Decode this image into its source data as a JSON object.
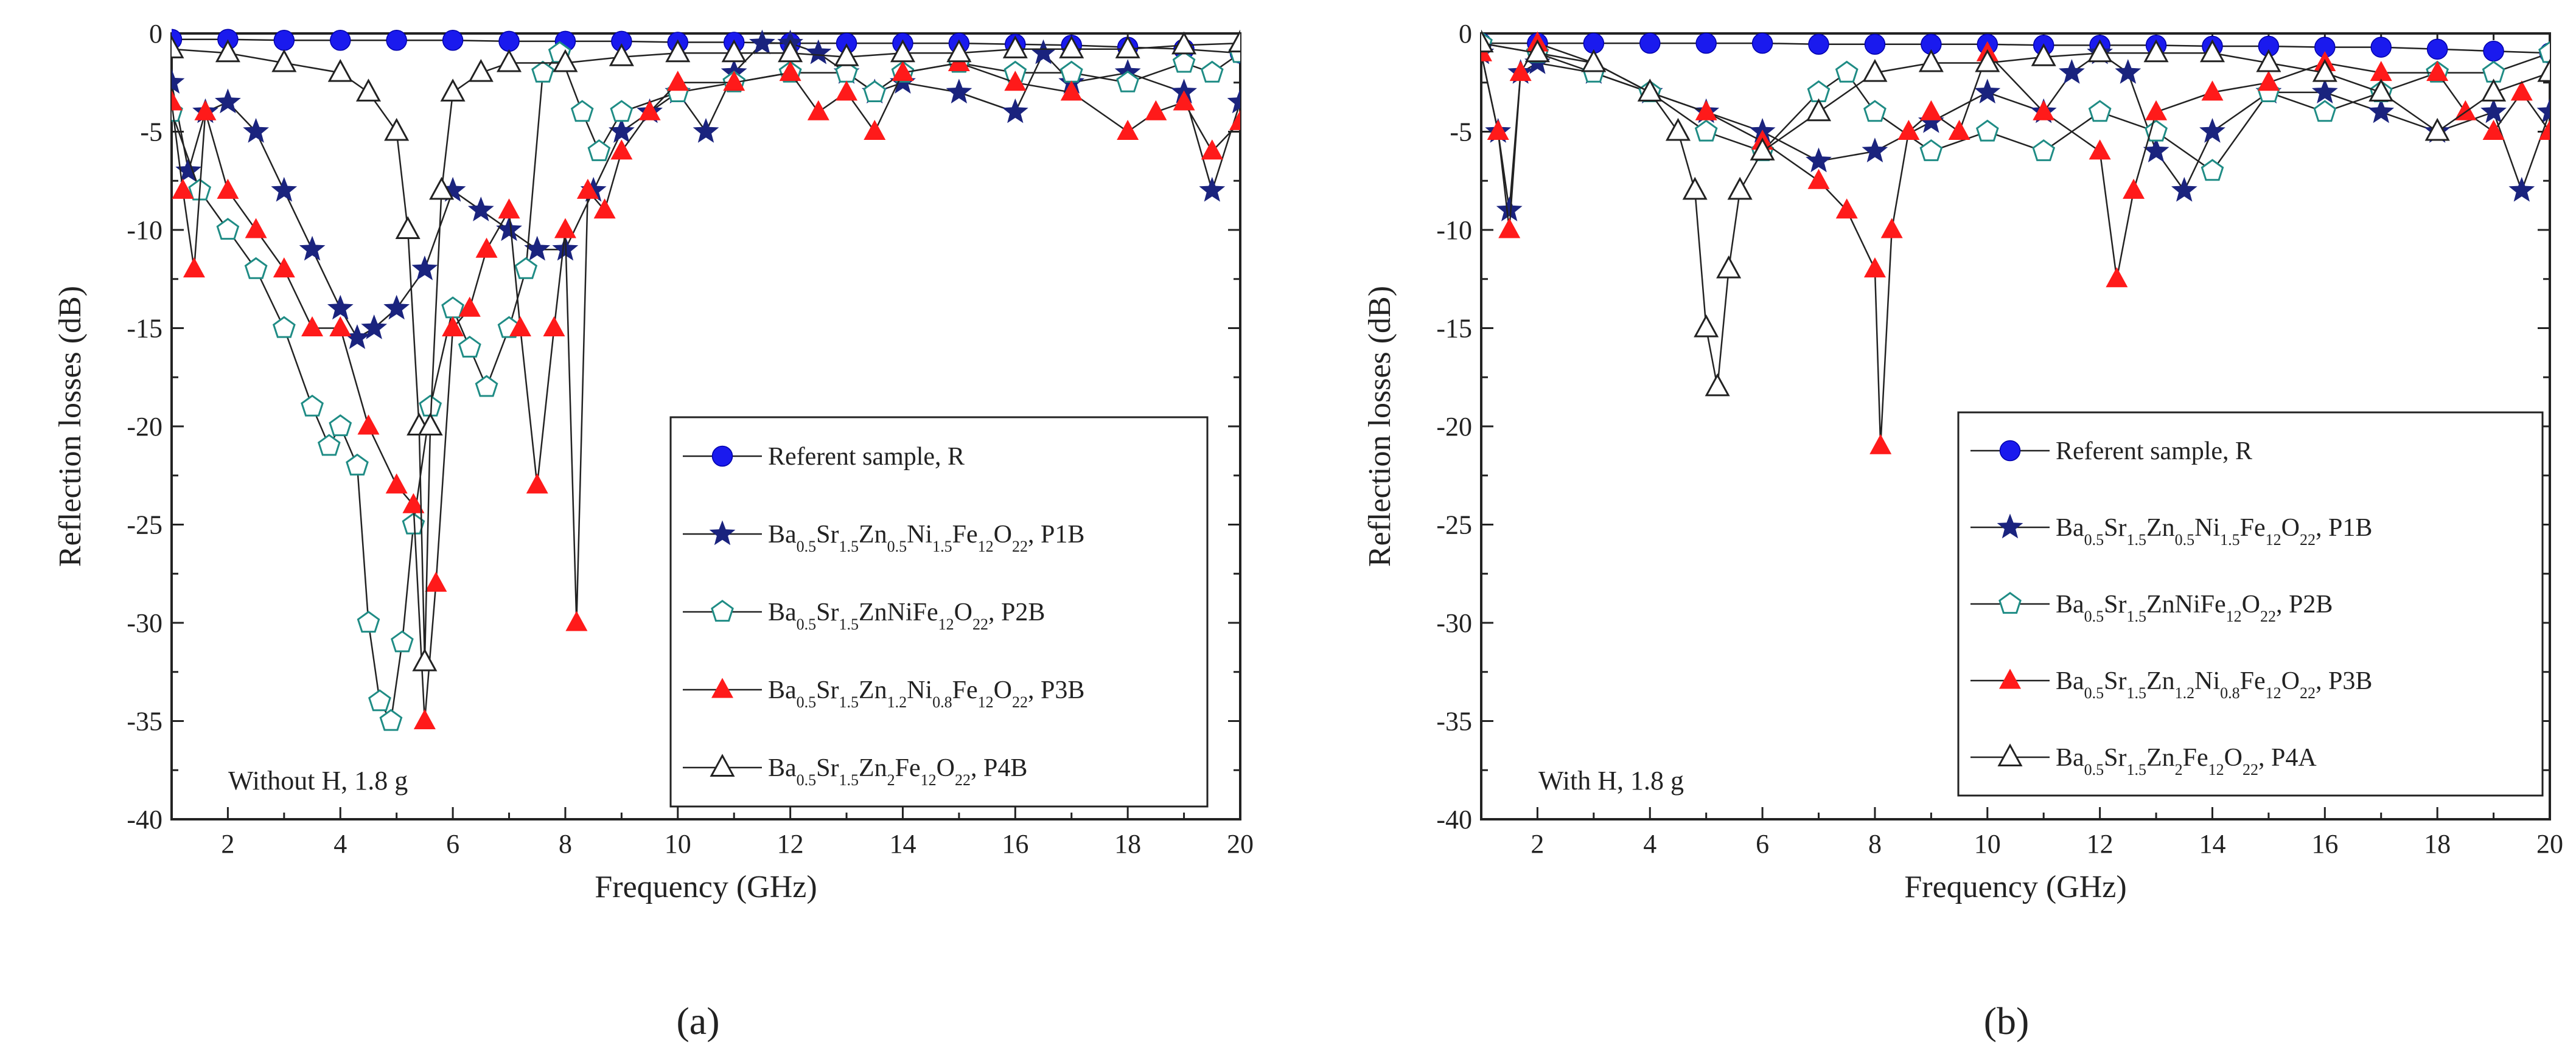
{
  "chart_data": [
    {
      "type": "line",
      "panel_label": "(a)",
      "xlabel": "Frequency (GHz)",
      "ylabel": "Reflection losses (dB)",
      "xlim": [
        1,
        20
      ],
      "ylim": [
        -40,
        0
      ],
      "xticks": [
        2,
        4,
        6,
        8,
        10,
        12,
        14,
        16,
        18,
        20
      ],
      "yticks": [
        0,
        -5,
        -10,
        -15,
        -20,
        -25,
        -30,
        -35,
        -40
      ],
      "annotation": "Without H, 1.8 g",
      "legend_position": "bottom-right",
      "series": [
        {
          "name": "Referent sample, R",
          "color": "#1a1aee",
          "marker": "circle",
          "x": [
            1,
            2,
            3,
            4,
            5,
            6,
            7,
            8,
            9,
            10,
            11,
            12,
            13,
            14,
            15,
            16,
            17,
            18,
            19,
            20
          ],
          "y": [
            -0.3,
            -0.3,
            -0.35,
            -0.35,
            -0.35,
            -0.35,
            -0.4,
            -0.4,
            -0.4,
            -0.45,
            -0.45,
            -0.5,
            -0.5,
            -0.5,
            -0.5,
            -0.55,
            -0.6,
            -0.7,
            -0.8,
            -1.0
          ]
        },
        {
          "name": "Ba0.5Sr1.5Zn0.5Ni1.5Fe12O22, P1B",
          "color": "#1a237e",
          "marker": "star",
          "legend_parts": [
            [
              "Ba",
              ""
            ],
            [
              "0.5",
              "sub"
            ],
            [
              "Sr",
              ""
            ],
            [
              "1.5",
              "sub"
            ],
            [
              "Zn",
              ""
            ],
            [
              "0.5",
              "sub"
            ],
            [
              "Ni",
              ""
            ],
            [
              "1.5",
              "sub"
            ],
            [
              "Fe",
              ""
            ],
            [
              "12",
              "sub"
            ],
            [
              "O",
              ""
            ],
            [
              "22",
              "sub"
            ],
            [
              ", P1B",
              ""
            ]
          ],
          "x": [
            1,
            1.3,
            1.6,
            2,
            2.5,
            3,
            3.5,
            4,
            4.3,
            4.6,
            5,
            5.5,
            6,
            6.5,
            7,
            7.5,
            8,
            8.5,
            9,
            9.5,
            10,
            10.5,
            11,
            11.5,
            12,
            12.5,
            13,
            13.5,
            14,
            15,
            16,
            16.5,
            17,
            18,
            19,
            19.5,
            20
          ],
          "y": [
            -2.5,
            -7,
            -4,
            -3.5,
            -5,
            -8,
            -11,
            -14,
            -15.5,
            -15,
            -14,
            -12,
            -8,
            -9,
            -10,
            -11,
            -11,
            -8,
            -5,
            -4,
            -3,
            -5,
            -2,
            -0.5,
            -0.5,
            -1,
            -2,
            -3,
            -2.5,
            -3,
            -4,
            -1,
            -2.5,
            -2,
            -3,
            -8,
            -3.5
          ]
        },
        {
          "name": "Ba0.5Sr1.5ZnNiFe12O22, P2B",
          "color": "#1f8c85",
          "marker": "pentagon",
          "legend_parts": [
            [
              "Ba",
              ""
            ],
            [
              "0.5",
              "sub"
            ],
            [
              "Sr",
              ""
            ],
            [
              "1.5",
              "sub"
            ],
            [
              "ZnNiFe",
              ""
            ],
            [
              "12",
              "sub"
            ],
            [
              "O",
              ""
            ],
            [
              "22",
              "sub"
            ],
            [
              ", P2B",
              ""
            ]
          ],
          "x": [
            1,
            1.5,
            2,
            2.5,
            3,
            3.5,
            3.8,
            4,
            4.3,
            4.5,
            4.7,
            4.9,
            5.1,
            5.3,
            5.6,
            6,
            6.3,
            6.6,
            7,
            7.3,
            7.6,
            7.9,
            8.3,
            8.6,
            9,
            10,
            11,
            12,
            13,
            13.5,
            14,
            15,
            16,
            17,
            18,
            19,
            19.5,
            20
          ],
          "y": [
            -4,
            -8,
            -10,
            -12,
            -15,
            -19,
            -21,
            -20,
            -22,
            -30,
            -34,
            -35,
            -31,
            -25,
            -19,
            -14,
            -16,
            -18,
            -15,
            -12,
            -2,
            -1,
            -4,
            -6,
            -4,
            -3,
            -2.5,
            -2,
            -2,
            -3,
            -2,
            -1.5,
            -2,
            -2,
            -2.5,
            -1.5,
            -2,
            -1
          ]
        },
        {
          "name": "Ba0.5Sr1.5Zn1.2Ni0.8Fe12O22, P3B",
          "color": "#ff1a1a",
          "marker": "triangle",
          "legend_parts": [
            [
              "Ba",
              ""
            ],
            [
              "0.5",
              "sub"
            ],
            [
              "Sr",
              ""
            ],
            [
              "1.5",
              "sub"
            ],
            [
              "Zn",
              ""
            ],
            [
              "1.2",
              "sub"
            ],
            [
              "Ni",
              ""
            ],
            [
              "0.8",
              "sub"
            ],
            [
              "Fe",
              ""
            ],
            [
              "12",
              "sub"
            ],
            [
              "O",
              ""
            ],
            [
              "22",
              "sub"
            ],
            [
              ", P3B",
              ""
            ]
          ],
          "x": [
            1,
            1.2,
            1.4,
            1.6,
            2,
            2.5,
            3,
            3.5,
            4,
            4.5,
            5,
            5.3,
            5.5,
            5.7,
            6,
            6.3,
            6.6,
            7,
            7.2,
            7.5,
            7.8,
            8,
            8.2,
            8.4,
            8.7,
            9,
            9.5,
            10,
            11,
            12,
            12.5,
            13,
            13.5,
            14,
            15,
            16,
            17,
            18,
            18.5,
            19,
            19.5,
            20
          ],
          "y": [
            -3.5,
            -8,
            -12,
            -4,
            -8,
            -10,
            -12,
            -15,
            -15,
            -20,
            -23,
            -24,
            -35,
            -28,
            -15,
            -14,
            -11,
            -9,
            -15,
            -23,
            -15,
            -10,
            -30,
            -8,
            -9,
            -6,
            -4,
            -2.5,
            -2.5,
            -2,
            -4,
            -3,
            -5,
            -2,
            -1.5,
            -2.5,
            -3,
            -5,
            -4,
            -3.5,
            -6,
            -4.5
          ]
        },
        {
          "name": "Ba0.5Sr1.5Zn2Fe12O22, P4B",
          "color": "#222222",
          "marker": "triangle-open",
          "legend_parts": [
            [
              "Ba",
              ""
            ],
            [
              "0.5",
              "sub"
            ],
            [
              "Sr",
              ""
            ],
            [
              "1.5",
              "sub"
            ],
            [
              "Zn",
              ""
            ],
            [
              "2",
              "sub"
            ],
            [
              "Fe",
              ""
            ],
            [
              "12",
              "sub"
            ],
            [
              "O",
              ""
            ],
            [
              "22",
              "sub"
            ],
            [
              ", P4B",
              ""
            ]
          ],
          "x": [
            1,
            2,
            3,
            4,
            4.5,
            5,
            5.2,
            5.4,
            5.5,
            5.6,
            5.8,
            6,
            6.5,
            7,
            8,
            9,
            10,
            11,
            12,
            13,
            14,
            15,
            16,
            17,
            18,
            19,
            20
          ],
          "y": [
            -0.8,
            -1,
            -1.5,
            -2,
            -3,
            -5,
            -10,
            -20,
            -32,
            -20,
            -8,
            -3,
            -2,
            -1.5,
            -1.5,
            -1.2,
            -1,
            -1,
            -1,
            -1.2,
            -1,
            -1,
            -0.8,
            -0.8,
            -0.8,
            -0.6,
            -0.5
          ]
        }
      ]
    },
    {
      "type": "line",
      "panel_label": "(b)",
      "xlabel": "Frequency (GHz)",
      "ylabel": "Reflection losses (dB)",
      "xlim": [
        1,
        20
      ],
      "ylim": [
        -40,
        0
      ],
      "xticks": [
        2,
        4,
        6,
        8,
        10,
        12,
        14,
        16,
        18,
        20
      ],
      "yticks": [
        0,
        -5,
        -10,
        -15,
        -20,
        -25,
        -30,
        -35,
        -40
      ],
      "annotation": "With H, 1.8 g",
      "legend_position": "bottom-right",
      "series": [
        {
          "name": "Referent sample, R",
          "color": "#1a1aee",
          "marker": "circle",
          "x": [
            1,
            2,
            3,
            4,
            5,
            6,
            7,
            8,
            9,
            10,
            11,
            12,
            13,
            14,
            15,
            16,
            17,
            18,
            19,
            20
          ],
          "y": [
            -0.5,
            -0.5,
            -0.5,
            -0.5,
            -0.5,
            -0.5,
            -0.55,
            -0.55,
            -0.55,
            -0.55,
            -0.6,
            -0.6,
            -0.6,
            -0.65,
            -0.65,
            -0.7,
            -0.7,
            -0.8,
            -0.9,
            -1.0
          ]
        },
        {
          "name": "Ba0.5Sr1.5Zn0.5Ni1.5Fe12O22, P1B",
          "color": "#1a237e",
          "marker": "star",
          "legend_parts": [
            [
              "Ba",
              ""
            ],
            [
              "0.5",
              "sub"
            ],
            [
              "Sr",
              ""
            ],
            [
              "1.5",
              "sub"
            ],
            [
              "Zn",
              ""
            ],
            [
              "0.5",
              "sub"
            ],
            [
              "Ni",
              ""
            ],
            [
              "1.5",
              "sub"
            ],
            [
              "Fe",
              ""
            ],
            [
              "12",
              "sub"
            ],
            [
              "O",
              ""
            ],
            [
              "22",
              "sub"
            ],
            [
              ", P1B",
              ""
            ]
          ],
          "x": [
            1,
            1.3,
            1.5,
            1.7,
            2,
            3,
            4,
            5,
            6,
            7,
            8,
            9,
            10,
            11,
            11.5,
            12,
            12.5,
            13,
            13.5,
            14,
            15,
            16,
            17,
            18,
            19,
            19.5,
            20
          ],
          "y": [
            -1,
            -5,
            -9,
            -2,
            -1.5,
            -2,
            -3,
            -4,
            -5,
            -6.5,
            -6,
            -4.5,
            -3,
            -4,
            -2,
            -1,
            -2,
            -6,
            -8,
            -5,
            -3,
            -3,
            -4,
            -5,
            -4,
            -8,
            -4
          ]
        },
        {
          "name": "Ba0.5Sr1.5ZnNiFe12O22, P2B",
          "color": "#1f8c85",
          "marker": "pentagon",
          "legend_parts": [
            [
              "Ba",
              ""
            ],
            [
              "0.5",
              "sub"
            ],
            [
              "Sr",
              ""
            ],
            [
              "1.5",
              "sub"
            ],
            [
              "ZnNiFe",
              ""
            ],
            [
              "12",
              "sub"
            ],
            [
              "O",
              ""
            ],
            [
              "22",
              "sub"
            ],
            [
              ", P2B",
              ""
            ]
          ],
          "x": [
            1,
            2,
            3,
            4,
            5,
            6,
            7,
            7.5,
            8,
            9,
            10,
            11,
            12,
            13,
            14,
            15,
            16,
            17,
            18,
            19,
            20
          ],
          "y": [
            -0.5,
            -1,
            -2,
            -3,
            -5,
            -6,
            -3,
            -2,
            -4,
            -6,
            -5,
            -6,
            -4,
            -5,
            -7,
            -3,
            -4,
            -3,
            -2,
            -2,
            -1
          ]
        },
        {
          "name": "Ba0.5Sr1.5Zn1.2Ni0.8Fe12O22, P3B",
          "color": "#ff1a1a",
          "marker": "triangle",
          "legend_parts": [
            [
              "Ba",
              ""
            ],
            [
              "0.5",
              "sub"
            ],
            [
              "Sr",
              ""
            ],
            [
              "1.5",
              "sub"
            ],
            [
              "Zn",
              ""
            ],
            [
              "1.2",
              "sub"
            ],
            [
              "Ni",
              ""
            ],
            [
              "0.8",
              "sub"
            ],
            [
              "Fe",
              ""
            ],
            [
              "12",
              "sub"
            ],
            [
              "O",
              ""
            ],
            [
              "22",
              "sub"
            ],
            [
              ", P3B",
              ""
            ]
          ],
          "x": [
            1,
            1.3,
            1.5,
            1.7,
            2,
            3,
            4,
            5,
            6,
            7,
            7.5,
            8,
            8.1,
            8.3,
            8.6,
            9,
            9.5,
            10,
            11,
            12,
            12.3,
            12.6,
            13,
            14,
            15,
            16,
            17,
            18,
            18.5,
            19,
            19.5,
            20
          ],
          "y": [
            -1,
            -5,
            -10,
            -2,
            -0.5,
            -1.5,
            -3,
            -4,
            -5.5,
            -7.5,
            -9,
            -12,
            -21,
            -10,
            -5,
            -4,
            -5,
            -1,
            -4,
            -6,
            -12.5,
            -8,
            -4,
            -3,
            -2.5,
            -1.5,
            -2,
            -2,
            -4,
            -5,
            -3,
            -5
          ]
        },
        {
          "name": "Ba0.5Sr1.5Zn2Fe12O22, P4A",
          "color": "#222222",
          "marker": "triangle-open",
          "legend_parts": [
            [
              "Ba",
              ""
            ],
            [
              "0.5",
              "sub"
            ],
            [
              "Sr",
              ""
            ],
            [
              "1.5",
              "sub"
            ],
            [
              "Zn",
              ""
            ],
            [
              "2",
              "sub"
            ],
            [
              "Fe",
              ""
            ],
            [
              "12",
              "sub"
            ],
            [
              "O",
              ""
            ],
            [
              "22",
              "sub"
            ],
            [
              ", P4A",
              ""
            ]
          ],
          "x": [
            1,
            2,
            3,
            4,
            4.5,
            4.8,
            5,
            5.2,
            5.4,
            5.6,
            6,
            7,
            8,
            9,
            10,
            11,
            12,
            13,
            14,
            15,
            16,
            17,
            18,
            19,
            20
          ],
          "y": [
            -0.5,
            -1,
            -1.5,
            -3,
            -5,
            -8,
            -15,
            -18,
            -12,
            -8,
            -6,
            -4,
            -2,
            -1.5,
            -1.5,
            -1.2,
            -1,
            -1,
            -1,
            -1.5,
            -2,
            -3,
            -5,
            -3,
            -2
          ]
        }
      ]
    }
  ]
}
